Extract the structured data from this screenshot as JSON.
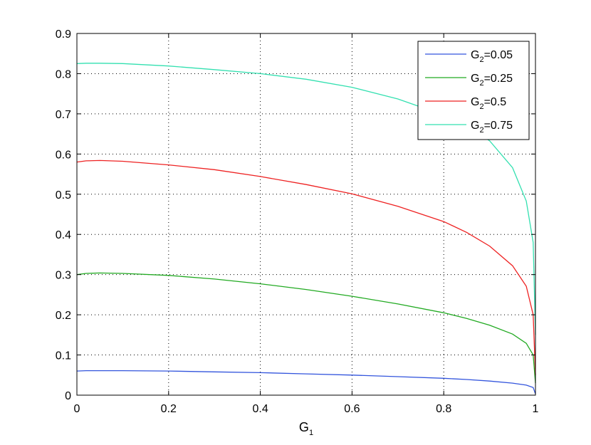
{
  "chart_data": {
    "type": "line",
    "title": "",
    "xlabel": {
      "base": "G",
      "sub": "1"
    },
    "ylabel": "",
    "xlim": [
      0,
      1
    ],
    "ylim": [
      0,
      0.9
    ],
    "xticks": [
      0,
      0.2,
      0.4,
      0.6,
      0.8,
      1
    ],
    "xtick_labels": [
      "0",
      "0.2",
      "0.4",
      "0.6",
      "0.8",
      "1"
    ],
    "yticks": [
      0,
      0.1,
      0.2,
      0.3,
      0.4,
      0.5,
      0.6,
      0.7,
      0.8,
      0.9
    ],
    "ytick_labels": [
      "0",
      "0.1",
      "0.2",
      "0.3",
      "0.4",
      "0.5",
      "0.6",
      "0.7",
      "0.8",
      "0.9"
    ],
    "grid": true,
    "legend_position": "top-right",
    "series": [
      {
        "name": "G2=0.05",
        "legend_base": "G",
        "legend_sub": "2",
        "legend_rest": "=0.05",
        "color": "#3355dd",
        "x": [
          0,
          0.02,
          0.05,
          0.1,
          0.2,
          0.3,
          0.4,
          0.5,
          0.6,
          0.7,
          0.8,
          0.85,
          0.9,
          0.95,
          0.98,
          0.995,
          1
        ],
        "y": [
          0.06,
          0.061,
          0.061,
          0.061,
          0.06,
          0.058,
          0.056,
          0.053,
          0.05,
          0.046,
          0.042,
          0.039,
          0.035,
          0.03,
          0.025,
          0.019,
          0.003
        ]
      },
      {
        "name": "G2=0.25",
        "legend_base": "G",
        "legend_sub": "2",
        "legend_rest": "=0.25",
        "color": "#22aa22",
        "x": [
          0,
          0.02,
          0.05,
          0.1,
          0.2,
          0.3,
          0.4,
          0.5,
          0.6,
          0.7,
          0.8,
          0.85,
          0.9,
          0.95,
          0.98,
          0.995,
          1
        ],
        "y": [
          0.3,
          0.303,
          0.304,
          0.303,
          0.298,
          0.289,
          0.277,
          0.263,
          0.246,
          0.227,
          0.205,
          0.191,
          0.174,
          0.152,
          0.129,
          0.1,
          0.03
        ]
      },
      {
        "name": "G2=0.5",
        "legend_base": "G",
        "legend_sub": "2",
        "legend_rest": "=0.5",
        "color": "#ee2222",
        "x": [
          0,
          0.02,
          0.05,
          0.1,
          0.2,
          0.3,
          0.4,
          0.5,
          0.6,
          0.7,
          0.8,
          0.85,
          0.9,
          0.95,
          0.98,
          0.995,
          1
        ],
        "y": [
          0.58,
          0.583,
          0.584,
          0.582,
          0.573,
          0.561,
          0.544,
          0.524,
          0.501,
          0.47,
          0.432,
          0.405,
          0.371,
          0.322,
          0.271,
          0.2,
          0.05
        ]
      },
      {
        "name": "G2=0.75",
        "legend_base": "G",
        "legend_sub": "2",
        "legend_rest": "=0.75",
        "color": "#33e0b0",
        "x": [
          0,
          0.02,
          0.05,
          0.1,
          0.2,
          0.3,
          0.4,
          0.5,
          0.6,
          0.7,
          0.8,
          0.85,
          0.9,
          0.95,
          0.98,
          0.995,
          1
        ],
        "y": [
          0.825,
          0.826,
          0.826,
          0.825,
          0.819,
          0.81,
          0.8,
          0.786,
          0.766,
          0.737,
          0.697,
          0.67,
          0.633,
          0.566,
          0.483,
          0.38,
          0.15
        ]
      }
    ]
  }
}
